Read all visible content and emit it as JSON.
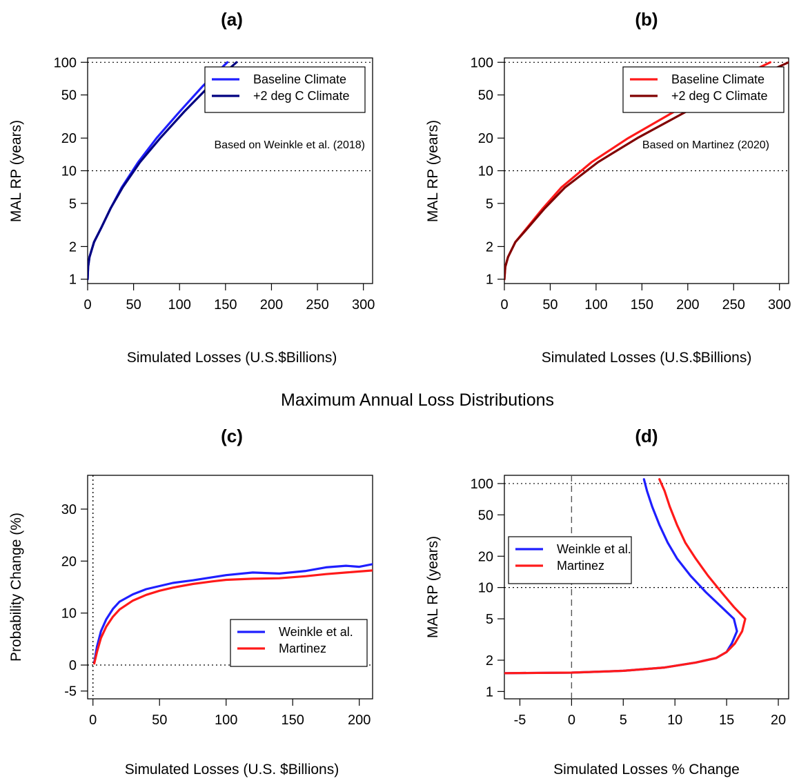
{
  "figure": {
    "mid_title": "Maximum Annual Loss Distributions"
  },
  "chart_data": [
    {
      "id": "a",
      "type": "line",
      "title": "(a)",
      "xlabel": "Simulated Losses (U.S.$Billions)",
      "ylabel": "MAL RP (years)",
      "y_scale": "log",
      "xlim": [
        0,
        310
      ],
      "ylim": [
        1,
        100
      ],
      "x_ticks": [
        0,
        50,
        100,
        150,
        200,
        250,
        300
      ],
      "y_ticks": [
        1,
        2,
        5,
        10,
        20,
        50,
        100
      ],
      "hlines": [
        10,
        100
      ],
      "vlines": [],
      "grid": false,
      "legend": "top-right",
      "annotation": "Based on Weinkle et al. (2018)",
      "series": [
        {
          "name": "Baseline Climate",
          "color": "#1f1fff",
          "x": [
            0,
            0.5,
            2,
            7,
            15,
            25,
            37,
            55,
            75,
            100,
            125,
            152
          ],
          "y": [
            1,
            1.3,
            1.6,
            2.2,
            3,
            4.5,
            7,
            12,
            20,
            35,
            60,
            100
          ]
        },
        {
          "name": "+2 deg C Climate",
          "color": "#000080",
          "x": [
            0,
            0.5,
            2,
            7,
            15,
            25,
            38,
            57,
            79,
            105,
            132,
            162
          ],
          "y": [
            1,
            1.3,
            1.6,
            2.2,
            3,
            4.5,
            7,
            12,
            20,
            35,
            60,
            100
          ]
        }
      ]
    },
    {
      "id": "b",
      "type": "line",
      "title": "(b)",
      "xlabel": "Simulated Losses (U.S.$Billions)",
      "ylabel": "MAL RP (years)",
      "y_scale": "log",
      "xlim": [
        0,
        310
      ],
      "ylim": [
        1,
        100
      ],
      "x_ticks": [
        0,
        50,
        100,
        150,
        200,
        250,
        300
      ],
      "y_ticks": [
        1,
        2,
        5,
        10,
        20,
        50,
        100
      ],
      "hlines": [
        10,
        100
      ],
      "vlines": [],
      "grid": false,
      "legend": "top-right",
      "annotation": "Based on Martinez (2020)",
      "series": [
        {
          "name": "Baseline Climate",
          "color": "#ff1a1a",
          "x": [
            0,
            1,
            4,
            12,
            25,
            42,
            62,
            95,
            135,
            185,
            235,
            290
          ],
          "y": [
            1,
            1.3,
            1.6,
            2.2,
            3,
            4.5,
            7,
            12,
            20,
            35,
            60,
            100
          ]
        },
        {
          "name": "+2 deg C Climate",
          "color": "#800000",
          "x": [
            0,
            1,
            4,
            12,
            26,
            44,
            66,
            102,
            145,
            198,
            252,
            310
          ],
          "y": [
            1,
            1.3,
            1.6,
            2.2,
            3,
            4.5,
            7,
            12,
            20,
            35,
            60,
            100
          ]
        }
      ]
    },
    {
      "id": "c",
      "type": "line",
      "title": "(c)",
      "xlabel": "Simulated Losses (U.S. $Billions)",
      "ylabel": "Probability Change (%)",
      "y_scale": "linear",
      "xlim": [
        -4,
        210
      ],
      "ylim": [
        -6.5,
        36.5
      ],
      "x_ticks": [
        0,
        50,
        100,
        150,
        200
      ],
      "y_ticks": [
        -5,
        0,
        10,
        20,
        30
      ],
      "hlines": [
        0
      ],
      "vlines": [
        0
      ],
      "grid": false,
      "legend": "bottom-right",
      "annotation": "",
      "series": [
        {
          "name": "Weinkle et al.",
          "color": "#1f1fff",
          "x": [
            1,
            3,
            6,
            10,
            15,
            20,
            30,
            40,
            50,
            60,
            75,
            90,
            100,
            120,
            140,
            160,
            175,
            190,
            200,
            210
          ],
          "y": [
            0.5,
            3.5,
            6.5,
            8.8,
            10.8,
            12.2,
            13.6,
            14.6,
            15.2,
            15.8,
            16.3,
            16.9,
            17.3,
            17.8,
            17.6,
            18.1,
            18.8,
            19.1,
            18.9,
            19.4
          ]
        },
        {
          "name": "Martinez",
          "color": "#ff1a1a",
          "x": [
            1,
            3,
            6,
            10,
            15,
            20,
            30,
            40,
            50,
            60,
            75,
            90,
            100,
            120,
            140,
            160,
            175,
            190,
            200,
            210
          ],
          "y": [
            0.3,
            2.5,
            5.2,
            7.4,
            9.3,
            10.7,
            12.4,
            13.5,
            14.3,
            14.9,
            15.6,
            16.1,
            16.4,
            16.6,
            16.7,
            17.1,
            17.5,
            17.8,
            18.0,
            18.2
          ]
        }
      ]
    },
    {
      "id": "d",
      "type": "line",
      "title": "(d)",
      "xlabel": "Simulated Losses % Change",
      "ylabel": "MAL RP (years)",
      "y_scale": "log",
      "xlim": [
        -6.5,
        21
      ],
      "ylim": [
        0.85,
        120
      ],
      "x_ticks": [
        -5,
        0,
        5,
        10,
        15,
        20
      ],
      "y_ticks": [
        1,
        2,
        5,
        10,
        20,
        50,
        100
      ],
      "hlines": [
        10,
        100
      ],
      "vlines": [
        0
      ],
      "grid": false,
      "legend": "top-left",
      "annotation": "",
      "series": [
        {
          "name": "Weinkle et al.",
          "color": "#1f1fff",
          "x": [
            -6.5,
            0,
            5,
            9,
            12,
            14,
            15,
            15.5,
            16,
            15.7,
            14.5,
            13,
            11.5,
            10.2,
            9.3,
            8.5,
            7.8,
            7.3,
            7
          ],
          "y": [
            1.5,
            1.52,
            1.58,
            1.7,
            1.9,
            2.1,
            2.4,
            2.9,
            3.8,
            5,
            6.5,
            9,
            13,
            19,
            27,
            40,
            60,
            85,
            110
          ]
        },
        {
          "name": "Martinez",
          "color": "#ff1a1a",
          "x": [
            -6.5,
            0,
            5,
            9,
            12,
            14,
            15,
            15.8,
            16.5,
            16.8,
            15.7,
            14.5,
            13.2,
            12,
            11,
            10.2,
            9.5,
            9,
            8.5
          ],
          "y": [
            1.5,
            1.52,
            1.58,
            1.7,
            1.9,
            2.1,
            2.4,
            2.9,
            3.8,
            5,
            6.5,
            9,
            13,
            19,
            27,
            40,
            60,
            85,
            110
          ]
        }
      ]
    }
  ]
}
